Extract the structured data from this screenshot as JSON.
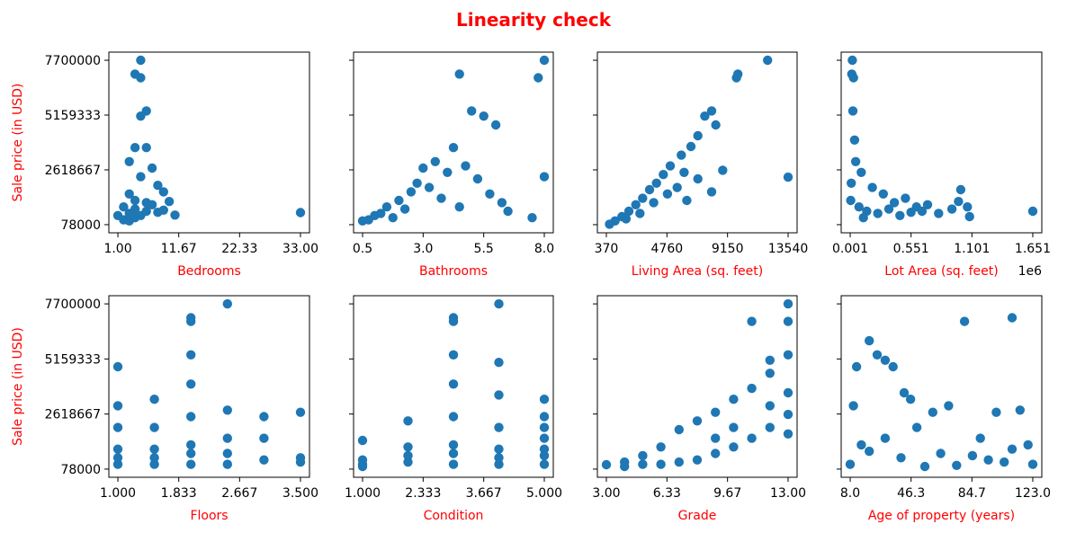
{
  "chart_data": {
    "type": "scatter",
    "title": "Linearity check",
    "ylabel": "Sale price (in USD)",
    "y_ticks": [
      "7700000",
      "5159333",
      "2618667",
      "78000"
    ],
    "ylim": [
      78000,
      7700000
    ],
    "colors": {
      "marker": "#1f77b4",
      "title": "#ff0000",
      "labels": "#ff0000"
    },
    "grid": false,
    "subplots": [
      {
        "xlabel": "Bedrooms",
        "xlim": [
          1,
          33
        ],
        "x_ticks": [
          "1.00",
          "11.67",
          "22.33",
          "33.00"
        ],
        "offset_text": "",
        "points": [
          [
            33,
            640000
          ],
          [
            10,
            1150000
          ],
          [
            11,
            520000
          ],
          [
            5,
            7700000
          ],
          [
            4,
            7060000
          ],
          [
            5,
            6890000
          ],
          [
            6,
            5350000
          ],
          [
            5,
            5110000
          ],
          [
            4,
            3650000
          ],
          [
            6,
            3650000
          ],
          [
            3,
            3000000
          ],
          [
            7,
            2700000
          ],
          [
            5,
            2300000
          ],
          [
            8,
            1900000
          ],
          [
            9,
            1600000
          ],
          [
            3,
            1500000
          ],
          [
            4,
            1200000
          ],
          [
            2,
            900000
          ],
          [
            1,
            500000
          ],
          [
            3,
            600000
          ],
          [
            4,
            800000
          ],
          [
            6,
            1100000
          ],
          [
            7,
            1000000
          ],
          [
            9,
            750000
          ],
          [
            2,
            300000
          ],
          [
            3,
            250000
          ],
          [
            4,
            400000
          ],
          [
            5,
            500000
          ],
          [
            6,
            700000
          ],
          [
            8,
            650000
          ]
        ]
      },
      {
        "xlabel": "Bathrooms",
        "xlim": [
          0.5,
          8
        ],
        "x_ticks": [
          "0.5",
          "3.0",
          "5.5",
          "8.0"
        ],
        "offset_text": "",
        "points": [
          [
            8,
            7700000
          ],
          [
            7.75,
            6890000
          ],
          [
            4.5,
            7060000
          ],
          [
            6,
            4700000
          ],
          [
            5,
            5350000
          ],
          [
            5.5,
            5110000
          ],
          [
            8,
            2300000
          ],
          [
            7.5,
            400000
          ],
          [
            6.5,
            700000
          ],
          [
            4.25,
            3650000
          ],
          [
            3.5,
            3000000
          ],
          [
            3,
            2700000
          ],
          [
            2.75,
            2000000
          ],
          [
            2.5,
            1600000
          ],
          [
            2,
            1200000
          ],
          [
            1.5,
            900000
          ],
          [
            1,
            500000
          ],
          [
            0.75,
            300000
          ],
          [
            0.5,
            250000
          ],
          [
            1.25,
            600000
          ],
          [
            3.25,
            1800000
          ],
          [
            4,
            2500000
          ],
          [
            4.75,
            2800000
          ],
          [
            5.25,
            2200000
          ],
          [
            5.75,
            1500000
          ],
          [
            6.25,
            1100000
          ],
          [
            3.75,
            1300000
          ],
          [
            2.25,
            800000
          ],
          [
            1.75,
            400000
          ],
          [
            4.5,
            900000
          ]
        ]
      },
      {
        "xlabel": "Living Area (sq. feet)",
        "xlim": [
          370,
          13540
        ],
        "x_ticks": [
          "370",
          "4760",
          "9150",
          "13540"
        ],
        "offset_text": "",
        "points": [
          [
            12050,
            7700000
          ],
          [
            9900,
            7060000
          ],
          [
            9800,
            6890000
          ],
          [
            13540,
            2280000
          ],
          [
            8000,
            5350000
          ],
          [
            7500,
            5110000
          ],
          [
            8300,
            4700000
          ],
          [
            7000,
            4200000
          ],
          [
            6500,
            3700000
          ],
          [
            5800,
            3300000
          ],
          [
            5000,
            2800000
          ],
          [
            4500,
            2400000
          ],
          [
            4000,
            2000000
          ],
          [
            3500,
            1700000
          ],
          [
            3000,
            1300000
          ],
          [
            2500,
            1000000
          ],
          [
            2000,
            700000
          ],
          [
            1500,
            450000
          ],
          [
            1000,
            250000
          ],
          [
            600,
            100000
          ],
          [
            6000,
            2500000
          ],
          [
            7000,
            2200000
          ],
          [
            5500,
            1800000
          ],
          [
            4800,
            1500000
          ],
          [
            3800,
            1100000
          ],
          [
            8800,
            2600000
          ],
          [
            8000,
            1600000
          ],
          [
            6200,
            1200000
          ],
          [
            2800,
            600000
          ],
          [
            1800,
            350000
          ]
        ]
      },
      {
        "xlabel": "Lot Area (sq. feet)",
        "xlim": [
          520,
          1651359
        ],
        "x_ticks": [
          "0.001",
          "0.551",
          "1.101",
          "1.651"
        ],
        "offset_text": "1e6",
        "points": [
          [
            1651359,
            700000
          ],
          [
            1060000,
            900000
          ],
          [
            1000000,
            1700000
          ],
          [
            920000,
            800000
          ],
          [
            980000,
            1150000
          ],
          [
            1080000,
            450000
          ],
          [
            700000,
            1000000
          ],
          [
            600000,
            900000
          ],
          [
            500000,
            1300000
          ],
          [
            400000,
            1100000
          ],
          [
            300000,
            1500000
          ],
          [
            200000,
            1800000
          ],
          [
            100000,
            2500000
          ],
          [
            50000,
            3000000
          ],
          [
            20000,
            7700000
          ],
          [
            15000,
            7060000
          ],
          [
            30000,
            6890000
          ],
          [
            25000,
            5350000
          ],
          [
            40000,
            4000000
          ],
          [
            10000,
            2000000
          ],
          [
            5000,
            1200000
          ],
          [
            80000,
            900000
          ],
          [
            150000,
            700000
          ],
          [
            250000,
            600000
          ],
          [
            350000,
            800000
          ],
          [
            450000,
            500000
          ],
          [
            550000,
            650000
          ],
          [
            650000,
            700000
          ],
          [
            800000,
            600000
          ],
          [
            120000,
            400000
          ]
        ]
      },
      {
        "xlabel": "Floors",
        "xlim": [
          1,
          3.5
        ],
        "x_ticks": [
          "1.000",
          "1.833",
          "2.667",
          "3.500"
        ],
        "offset_text": "",
        "points": [
          [
            1,
            4800000
          ],
          [
            1,
            3000000
          ],
          [
            1,
            2000000
          ],
          [
            1,
            1000000
          ],
          [
            1,
            300000
          ],
          [
            1.5,
            3300000
          ],
          [
            1.5,
            2000000
          ],
          [
            1.5,
            1000000
          ],
          [
            1.5,
            300000
          ],
          [
            2,
            6890000
          ],
          [
            2,
            7060000
          ],
          [
            2,
            5350000
          ],
          [
            2,
            4000000
          ],
          [
            2,
            2500000
          ],
          [
            2,
            1200000
          ],
          [
            2,
            300000
          ],
          [
            2.5,
            7700000
          ],
          [
            2.5,
            2800000
          ],
          [
            2.5,
            1500000
          ],
          [
            2.5,
            300000
          ],
          [
            3,
            2500000
          ],
          [
            3,
            1500000
          ],
          [
            3,
            500000
          ],
          [
            3.5,
            2700000
          ],
          [
            3.5,
            600000
          ],
          [
            3.5,
            400000
          ],
          [
            1,
            600000
          ],
          [
            1.5,
            600000
          ],
          [
            2,
            800000
          ],
          [
            2.5,
            800000
          ]
        ]
      },
      {
        "xlabel": "Condition",
        "xlim": [
          1,
          5
        ],
        "x_ticks": [
          "1.000",
          "2.333",
          "3.667",
          "5.000"
        ],
        "offset_text": "",
        "points": [
          [
            1,
            1400000
          ],
          [
            1,
            500000
          ],
          [
            1,
            200000
          ],
          [
            2,
            2300000
          ],
          [
            2,
            1100000
          ],
          [
            2,
            400000
          ],
          [
            3,
            7060000
          ],
          [
            3,
            6890000
          ],
          [
            3,
            5350000
          ],
          [
            3,
            4000000
          ],
          [
            3,
            2500000
          ],
          [
            3,
            1200000
          ],
          [
            3,
            300000
          ],
          [
            4,
            7700000
          ],
          [
            4,
            5000000
          ],
          [
            4,
            3500000
          ],
          [
            4,
            2000000
          ],
          [
            4,
            1000000
          ],
          [
            4,
            300000
          ],
          [
            5,
            3300000
          ],
          [
            5,
            2500000
          ],
          [
            5,
            1500000
          ],
          [
            5,
            700000
          ],
          [
            5,
            300000
          ],
          [
            1,
            300000
          ],
          [
            2,
            700000
          ],
          [
            3,
            800000
          ],
          [
            4,
            600000
          ],
          [
            5,
            1000000
          ],
          [
            5,
            2000000
          ]
        ]
      },
      {
        "xlabel": "Grade",
        "xlim": [
          3,
          13
        ],
        "x_ticks": [
          "3.00",
          "6.33",
          "9.67",
          "13.00"
        ],
        "offset_text": "",
        "points": [
          [
            3,
            280000
          ],
          [
            4,
            400000
          ],
          [
            5,
            700000
          ],
          [
            6,
            1100000
          ],
          [
            7,
            1900000
          ],
          [
            8,
            2300000
          ],
          [
            9,
            2700000
          ],
          [
            10,
            3300000
          ],
          [
            11,
            6890000
          ],
          [
            11,
            3800000
          ],
          [
            12,
            5100000
          ],
          [
            12,
            4500000
          ],
          [
            13,
            7700000
          ],
          [
            13,
            6890000
          ],
          [
            13,
            5350000
          ],
          [
            13,
            3600000
          ],
          [
            13,
            1700000
          ],
          [
            4,
            200000
          ],
          [
            5,
            300000
          ],
          [
            6,
            300000
          ],
          [
            7,
            400000
          ],
          [
            8,
            500000
          ],
          [
            9,
            800000
          ],
          [
            10,
            1100000
          ],
          [
            11,
            1500000
          ],
          [
            12,
            2000000
          ],
          [
            12,
            3000000
          ],
          [
            13,
            2600000
          ],
          [
            10,
            2000000
          ],
          [
            9,
            1500000
          ]
        ]
      },
      {
        "xlabel": "Age of property (years)",
        "xlim": [
          8,
          123
        ],
        "x_ticks": [
          "8.0",
          "46.3",
          "84.7",
          "123.0"
        ],
        "offset_text": "",
        "points": [
          [
            110,
            7060000
          ],
          [
            80,
            6890000
          ],
          [
            20,
            6000000
          ],
          [
            25,
            5350000
          ],
          [
            30,
            5100000
          ],
          [
            35,
            4800000
          ],
          [
            12,
            4800000
          ],
          [
            42,
            3600000
          ],
          [
            46,
            3300000
          ],
          [
            10,
            3000000
          ],
          [
            60,
            2700000
          ],
          [
            70,
            3000000
          ],
          [
            100,
            2700000
          ],
          [
            115,
            2800000
          ],
          [
            50,
            2000000
          ],
          [
            90,
            1500000
          ],
          [
            30,
            1500000
          ],
          [
            15,
            1200000
          ],
          [
            120,
            1200000
          ],
          [
            65,
            800000
          ],
          [
            85,
            700000
          ],
          [
            40,
            600000
          ],
          [
            95,
            500000
          ],
          [
            105,
            400000
          ],
          [
            8,
            300000
          ],
          [
            123,
            300000
          ],
          [
            55,
            200000
          ],
          [
            75,
            250000
          ],
          [
            20,
            900000
          ],
          [
            110,
            1000000
          ]
        ]
      }
    ]
  }
}
